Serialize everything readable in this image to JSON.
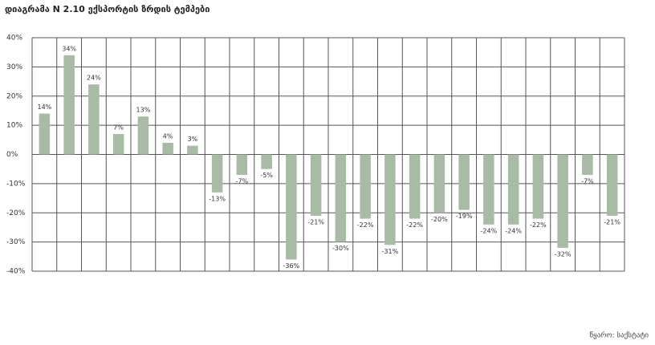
{
  "chart_data": {
    "type": "bar",
    "title": "დიაგრამა N 2.10 ექსპორტის ზრდის ტემპები",
    "source": "წყარო: საქსტატი",
    "categories": [
      null,
      null,
      null,
      null,
      null,
      null,
      null,
      null,
      null,
      null,
      null,
      null,
      null,
      null,
      null,
      null,
      null,
      null,
      null,
      null,
      null,
      null,
      null,
      null
    ],
    "values": [
      14,
      34,
      24,
      7,
      13,
      4,
      3,
      -13,
      -7,
      -5,
      -36,
      -21,
      -30,
      -22,
      -31,
      -22,
      -20,
      -19,
      -24,
      -24,
      -22,
      -32,
      -7,
      -21
    ],
    "value_labels": [
      "14%",
      "34%",
      "24%",
      "7%",
      "13%",
      "4%",
      "3%",
      "-13%",
      "-7%",
      "-5%",
      "-36%",
      "-21%",
      "-30%",
      "-22%",
      "-31%",
      "-22%",
      "-20%",
      "-19%",
      "-24%",
      "-24%",
      "-22%",
      "-32%",
      "-7%",
      "-21%"
    ],
    "color": "#a8bca5",
    "ylim": [
      -40,
      40
    ],
    "yticks": [
      {
        "value": -40,
        "label": "-40%"
      },
      {
        "value": -30,
        "label": "-30%"
      },
      {
        "value": -20,
        "label": "-20%"
      },
      {
        "value": -10,
        "label": "-10%"
      },
      {
        "value": 0,
        "label": "0%"
      },
      {
        "value": 10,
        "label": "10%"
      },
      {
        "value": 20,
        "label": "20%"
      },
      {
        "value": 30,
        "label": "30%"
      },
      {
        "value": 40,
        "label": "40%"
      }
    ],
    "grid": true
  }
}
